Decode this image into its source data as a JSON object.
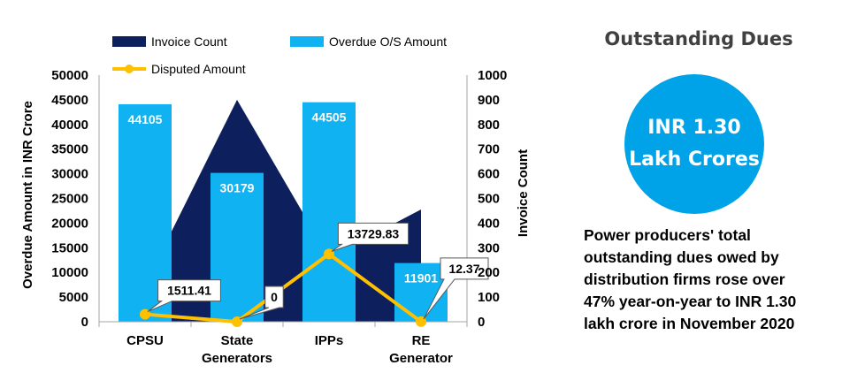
{
  "chart_data": {
    "type": "bar",
    "categories": [
      "CPSU",
      "State Generators",
      "IPPs",
      "RE Generator"
    ],
    "category_lines": [
      [
        "CPSU"
      ],
      [
        "State",
        "Generators"
      ],
      [
        "IPPs"
      ],
      [
        "RE",
        "Generator"
      ]
    ],
    "series": [
      {
        "name": "Invoice Count",
        "kind": "area",
        "axis": "right",
        "values": [
          150,
          900,
          260,
          455
        ]
      },
      {
        "name": "Overdue O/S Amount",
        "kind": "bar",
        "axis": "left",
        "values": [
          44105,
          30179,
          44505,
          11901
        ]
      },
      {
        "name": "Disputed Amount",
        "kind": "line",
        "axis": "left",
        "values": [
          1511.41,
          0,
          13729.83,
          12.37
        ]
      }
    ],
    "bar_labels": [
      "44105",
      "30179",
      "44505",
      "11901"
    ],
    "callout_labels": [
      "1511.41",
      "0",
      "13729.83",
      "12.37"
    ],
    "ylabel": "Overdue Amount in INR Crore",
    "y2label": "Invoice Count",
    "ylim": [
      0,
      50000
    ],
    "y2lim": [
      0,
      1000
    ],
    "yticks": [
      0,
      5000,
      10000,
      15000,
      20000,
      25000,
      30000,
      35000,
      40000,
      45000,
      50000
    ],
    "y2ticks": [
      0,
      100,
      200,
      300,
      400,
      500,
      600,
      700,
      800,
      900,
      1000
    ],
    "legend_placement": "top",
    "grid": false,
    "colors": {
      "invoice_count": "#0D1F5C",
      "overdue": "#10B2F2",
      "disputed": "#FFC000"
    }
  },
  "panel": {
    "title": "Outstanding Dues",
    "circle_line1": "INR 1.30",
    "circle_line2": "Lakh Crores",
    "description_lines": [
      "Power producers' total",
      "outstanding dues owed by",
      "distribution firms rose over",
      "47% year-on-year to INR 1.30",
      "lakh crore in November 2020"
    ]
  }
}
